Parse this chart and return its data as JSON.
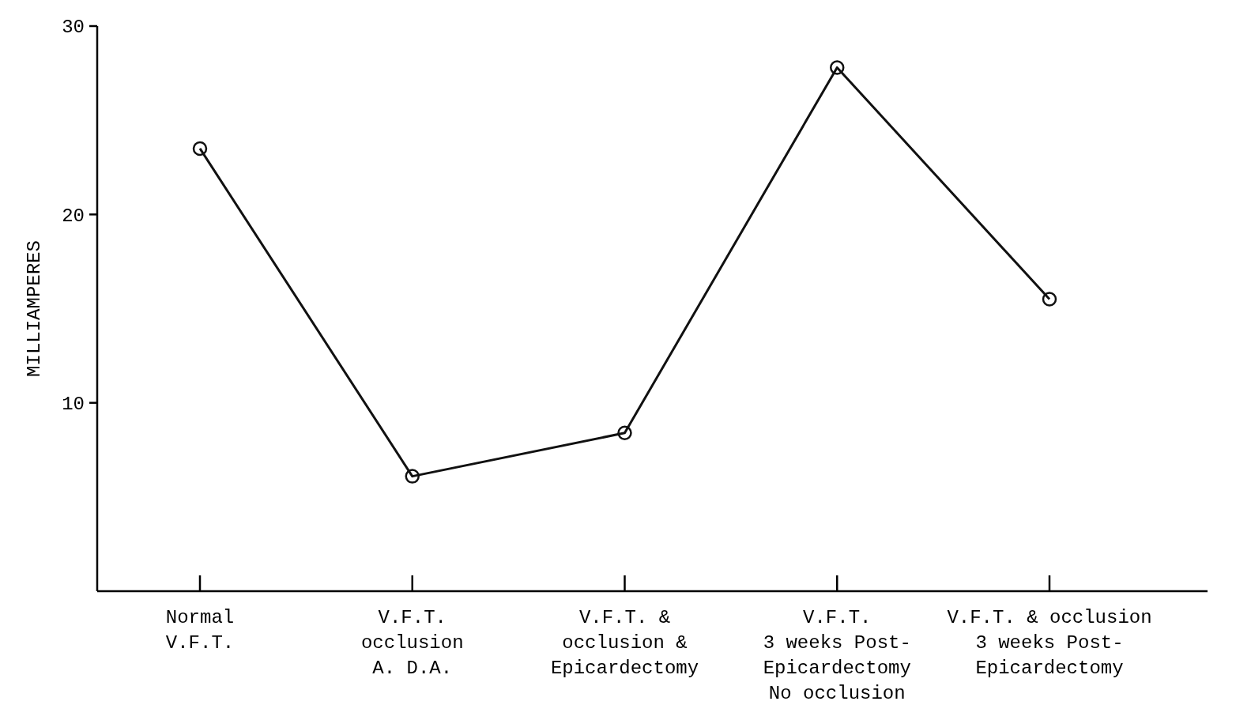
{
  "chart_data": {
    "type": "line",
    "ylabel": "MILLIAMPERES",
    "categories": [
      "Normal\nV.F.T.",
      "V.F.T.\nocclusion\nA. D.A.",
      "V.F.T. &\nocclusion &\nEpicardectomy",
      "V.F.T.\n3 weeks Post-\nEpicardectomy\nNo occlusion",
      "V.F.T. & occlusion\n3 weeks Post-\nEpicardectomy"
    ],
    "series": [
      {
        "color": "#111111",
        "values": [
          23.5,
          6.1,
          8.4,
          27.8,
          15.5
        ]
      }
    ],
    "ylim": [
      0,
      30
    ],
    "yticks": [
      10,
      20,
      30
    ],
    "grid": false,
    "marker": "circle",
    "line_style": "solid"
  }
}
